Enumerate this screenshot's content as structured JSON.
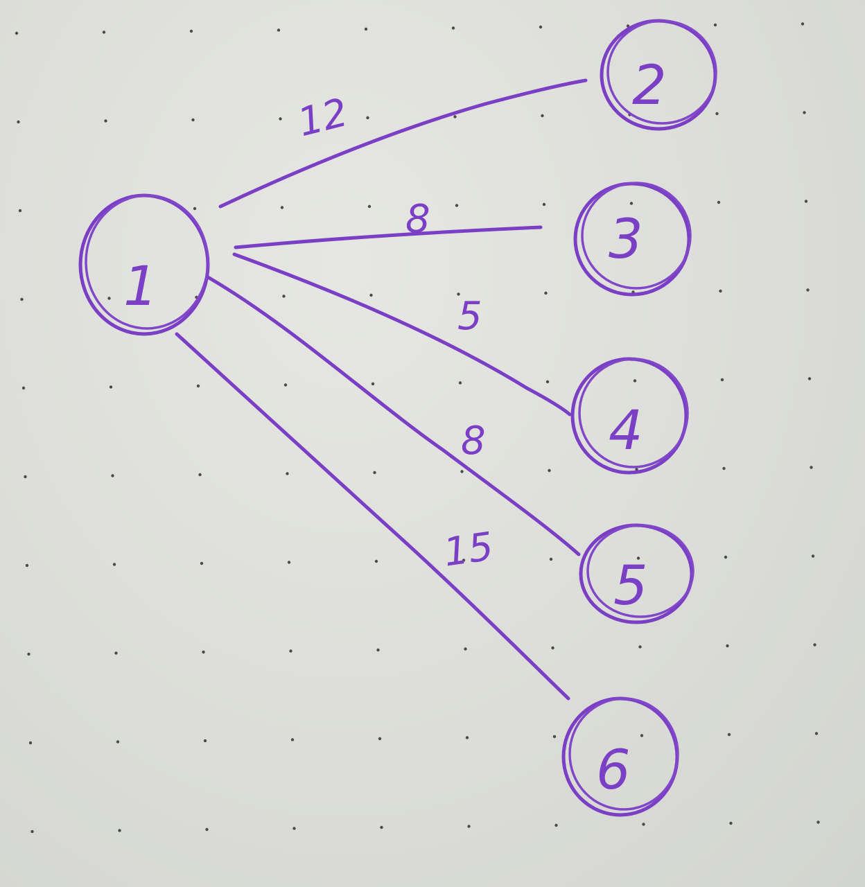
{
  "nodes": [
    {
      "id": "1",
      "label": "1"
    },
    {
      "id": "2",
      "label": "2"
    },
    {
      "id": "3",
      "label": "3"
    },
    {
      "id": "4",
      "label": "4"
    },
    {
      "id": "5",
      "label": "5"
    },
    {
      "id": "6",
      "label": "6"
    }
  ],
  "edges": [
    {
      "from": "1",
      "to": "2",
      "weight": "12"
    },
    {
      "from": "1",
      "to": "3",
      "weight": "8"
    },
    {
      "from": "1",
      "to": "4",
      "weight": "5"
    },
    {
      "from": "1",
      "to": "5",
      "weight": "8"
    },
    {
      "from": "1",
      "to": "6",
      "weight": "15"
    }
  ],
  "colors": {
    "ink": "#7a3fc4",
    "paper": "#dcded8"
  }
}
